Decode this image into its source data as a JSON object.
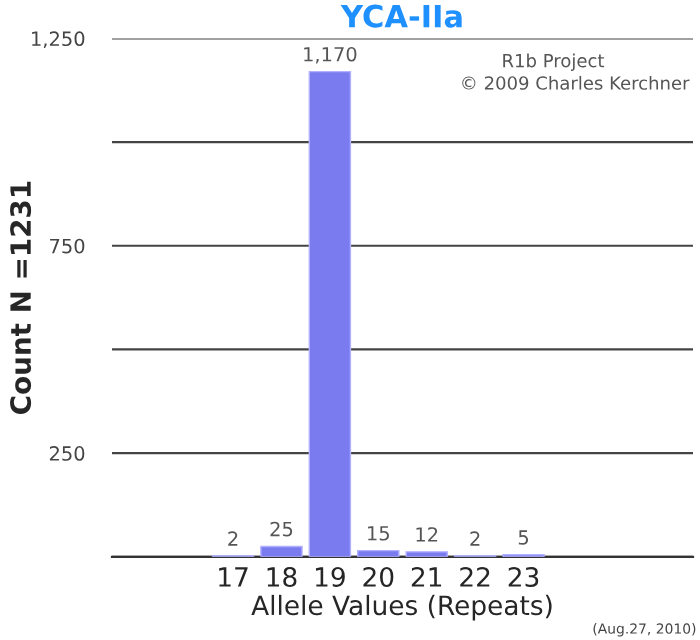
{
  "chart_data": {
    "type": "bar",
    "title": "YCA-IIa",
    "xlabel": "Allele Values (Repeats)",
    "ylabel": "Count N =1231",
    "categories": [
      null,
      null,
      "17",
      "18",
      "19",
      "20",
      "21",
      "22",
      "23",
      null,
      null,
      null
    ],
    "values": [
      null,
      null,
      2,
      25,
      1170,
      15,
      12,
      2,
      5,
      null,
      null,
      null
    ],
    "value_labels": [
      null,
      null,
      "2",
      "25",
      "1,170",
      "15",
      "12",
      "2",
      "5",
      null,
      null,
      null
    ],
    "color": "#7b7bf0",
    "ylim": [
      0,
      1250
    ],
    "yticks": [
      {
        "value": 0,
        "label": null
      },
      250,
      {
        "value": 500,
        "label": null
      },
      750,
      {
        "value": 1000,
        "label": null
      },
      {
        "value": 1250,
        "label": "1,250"
      }
    ],
    "grid": "y",
    "annotations": [
      "R1b Project",
      "© 2009 Charles Kerchner",
      "(Aug.27, 2010)"
    ]
  }
}
